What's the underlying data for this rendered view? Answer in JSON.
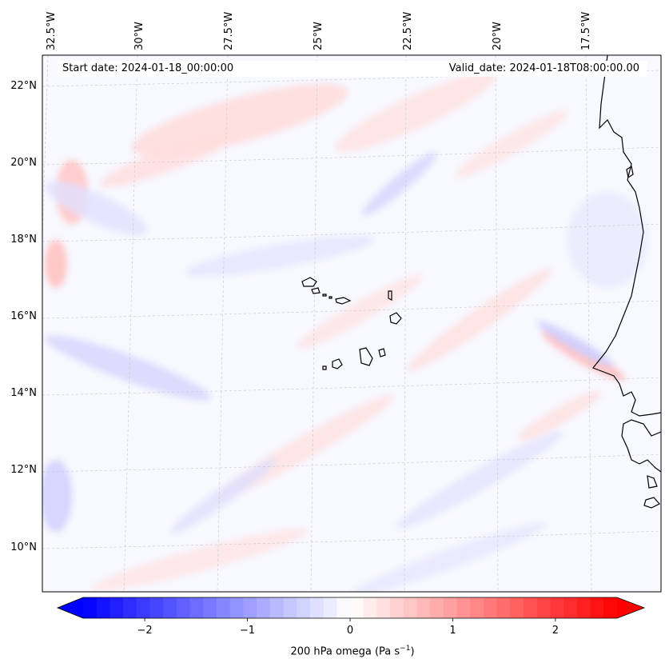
{
  "header": {
    "start_date": "Start date: 2024-01-18_00:00:00",
    "valid_date": "Valid_date: 2024-01-18T08:00:00.00"
  },
  "map": {
    "lon_labels": [
      "32.5°W",
      "30°W",
      "27.5°W",
      "25°W",
      "22.5°W",
      "20°W",
      "17.5°W"
    ],
    "lat_labels": [
      "22°N",
      "20°N",
      "18°N",
      "16°N",
      "14°N",
      "12°N",
      "10°N"
    ],
    "islands": "Cape Verde Islands",
    "coastline": "West African coast (Senegal / Guinea-Bissau)"
  },
  "colorbar": {
    "label_prefix": "200 hPa omega (Pa s",
    "label_sup": "−1",
    "label_suffix": ")",
    "ticks": [
      "−2",
      "−1",
      "0",
      "1",
      "2"
    ],
    "tick_values": [
      -2,
      -1,
      0,
      1,
      2
    ],
    "range": [
      -2.6,
      2.6
    ],
    "min_color": "#0000ff",
    "mid_color": "#ffffff",
    "max_color": "#ff0000"
  }
}
